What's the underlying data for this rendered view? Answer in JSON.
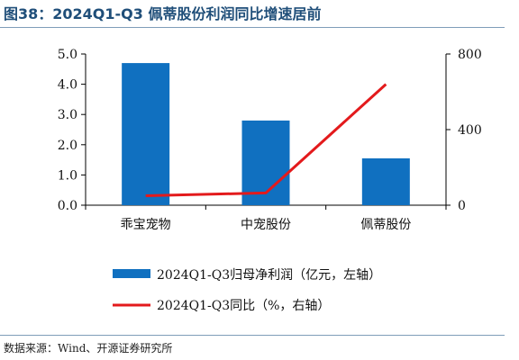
{
  "title": "图38：2024Q1-Q3 佩蒂股份利润同比增速居前",
  "source": "数据来源：Wind、开源证券研究所",
  "chart_data": {
    "type": "bar+line",
    "categories": [
      "乖宝宠物",
      "中宠股份",
      "佩蒂股份"
    ],
    "series": [
      {
        "name": "2024Q1-Q3归母净利润（亿元，左轴）",
        "type": "bar",
        "axis": "left",
        "color": "#1070c0",
        "values": [
          4.7,
          2.8,
          1.55
        ]
      },
      {
        "name": "2024Q1-Q3同比（%，右轴）",
        "type": "line",
        "axis": "right",
        "color": "#e31a1c",
        "values": [
          50,
          65,
          640
        ]
      }
    ],
    "y_left": {
      "min": 0,
      "max": 5,
      "ticks": [
        "0.0",
        "1.0",
        "2.0",
        "3.0",
        "4.0",
        "5.0"
      ]
    },
    "y_right": {
      "min": 0,
      "max": 800,
      "ticks": [
        "0",
        "400",
        "800"
      ]
    },
    "legend_position": "bottom",
    "grid": false
  }
}
